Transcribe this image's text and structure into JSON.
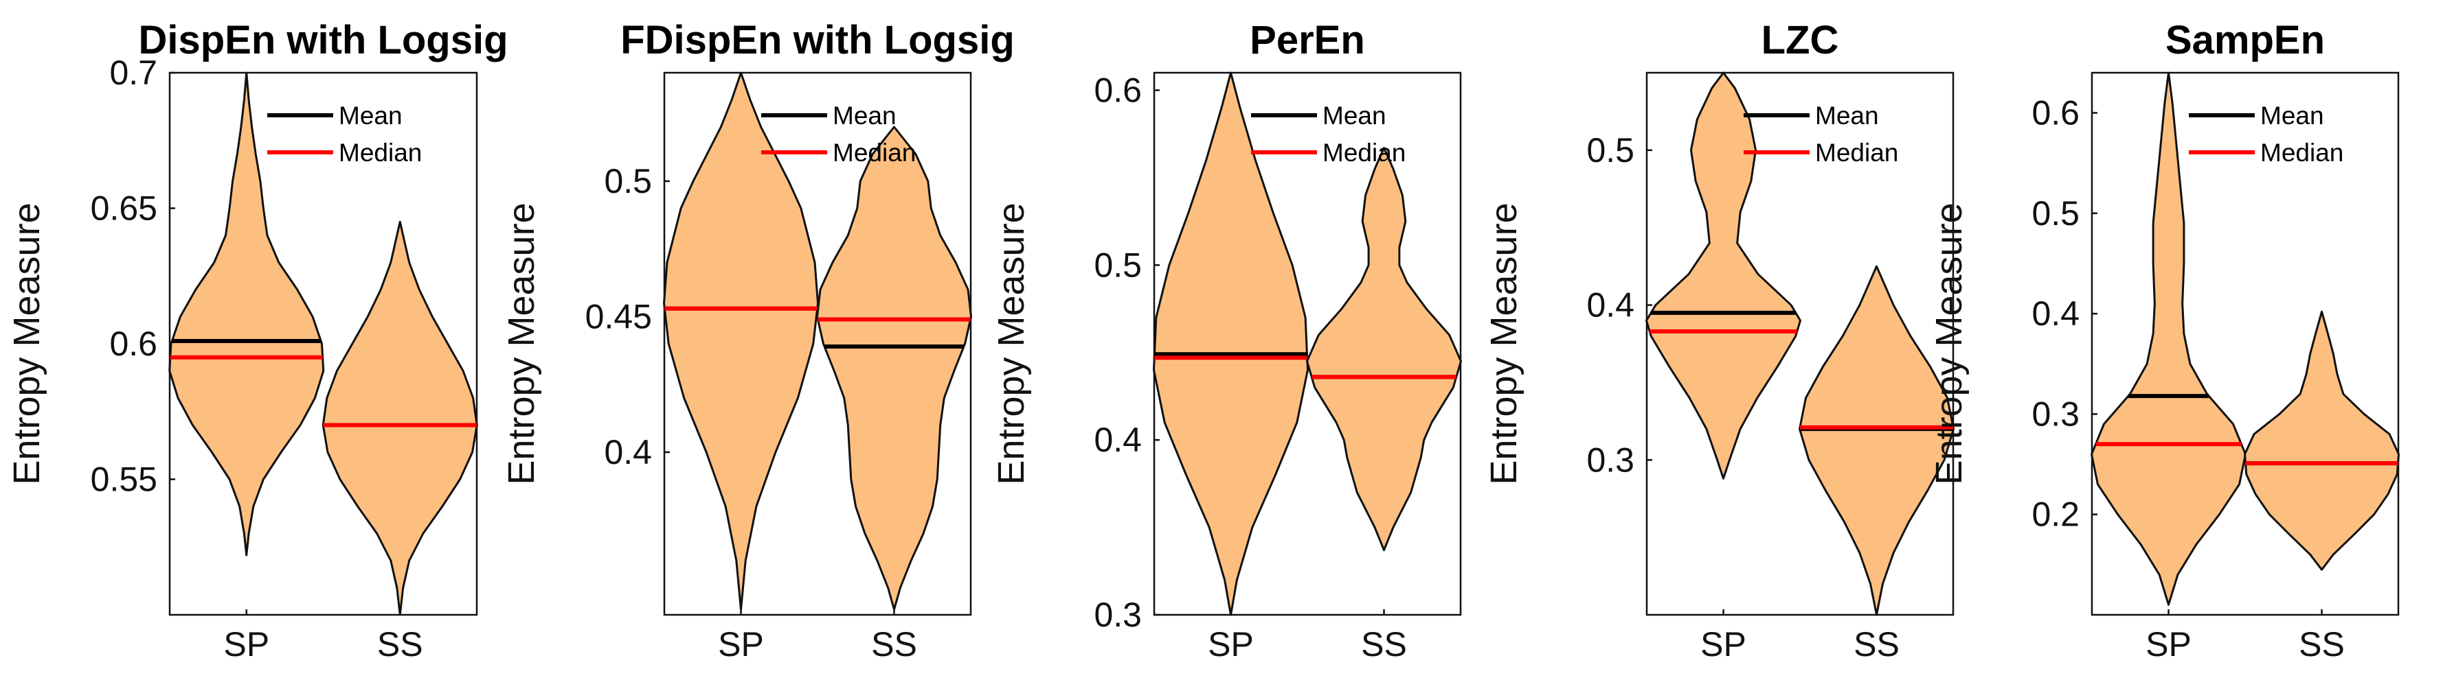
{
  "figure": {
    "background": "#ffffff",
    "violin_fill": "#fdbf80",
    "mean_color": "#000000",
    "median_color": "#ff0000"
  },
  "chart_data": [
    {
      "type": "violin",
      "title": "DispEn with Logsig",
      "ylabel": "Entropy Measure",
      "categories": [
        "SP",
        "SS"
      ],
      "ylim": [
        0.5,
        0.7
      ],
      "yticks": [
        0.55,
        0.6,
        0.65,
        0.7
      ],
      "ytick_labels": [
        "0.55",
        "0.6",
        "0.65",
        "0.7"
      ],
      "legend": {
        "mean_label": "Mean",
        "median_label": "Median",
        "location": "top-right"
      },
      "groups": [
        {
          "name": "SP",
          "mean": 0.601,
          "median": 0.595,
          "min": 0.522,
          "max": 0.7,
          "profile": [
            [
              0.522,
              0.0
            ],
            [
              0.53,
              0.03
            ],
            [
              0.54,
              0.09
            ],
            [
              0.55,
              0.22
            ],
            [
              0.56,
              0.45
            ],
            [
              0.57,
              0.7
            ],
            [
              0.58,
              0.89
            ],
            [
              0.59,
              1.0
            ],
            [
              0.6,
              0.98
            ],
            [
              0.61,
              0.86
            ],
            [
              0.62,
              0.66
            ],
            [
              0.63,
              0.42
            ],
            [
              0.64,
              0.27
            ],
            [
              0.65,
              0.22
            ],
            [
              0.66,
              0.18
            ],
            [
              0.67,
              0.12
            ],
            [
              0.68,
              0.07
            ],
            [
              0.69,
              0.03
            ],
            [
              0.7,
              0.0
            ]
          ]
        },
        {
          "name": "SS",
          "mean": 0.57,
          "median": 0.57,
          "min": 0.5,
          "max": 0.645,
          "profile": [
            [
              0.5,
              0.0
            ],
            [
              0.51,
              0.04
            ],
            [
              0.52,
              0.12
            ],
            [
              0.53,
              0.3
            ],
            [
              0.54,
              0.55
            ],
            [
              0.55,
              0.78
            ],
            [
              0.56,
              0.94
            ],
            [
              0.57,
              1.0
            ],
            [
              0.58,
              0.95
            ],
            [
              0.59,
              0.82
            ],
            [
              0.6,
              0.62
            ],
            [
              0.61,
              0.42
            ],
            [
              0.62,
              0.25
            ],
            [
              0.63,
              0.12
            ],
            [
              0.645,
              0.0
            ]
          ]
        }
      ]
    },
    {
      "type": "violin",
      "title": "FDispEn with Logsig",
      "ylabel": "Entropy Measure",
      "categories": [
        "SP",
        "SS"
      ],
      "ylim": [
        0.34,
        0.54
      ],
      "yticks": [
        0.4,
        0.45,
        0.5
      ],
      "ytick_labels": [
        "0.4",
        "0.45",
        "0.5"
      ],
      "legend": {
        "mean_label": "Mean",
        "median_label": "Median",
        "location": "top-right"
      },
      "groups": [
        {
          "name": "SP",
          "mean": 0.453,
          "median": 0.453,
          "min": 0.342,
          "max": 0.54,
          "profile": [
            [
              0.342,
              0.0
            ],
            [
              0.36,
              0.06
            ],
            [
              0.38,
              0.2
            ],
            [
              0.4,
              0.45
            ],
            [
              0.42,
              0.74
            ],
            [
              0.44,
              0.94
            ],
            [
              0.455,
              1.0
            ],
            [
              0.47,
              0.96
            ],
            [
              0.49,
              0.78
            ],
            [
              0.5,
              0.62
            ],
            [
              0.51,
              0.44
            ],
            [
              0.52,
              0.26
            ],
            [
              0.53,
              0.12
            ],
            [
              0.54,
              0.0
            ]
          ]
        },
        {
          "name": "SS",
          "mean": 0.439,
          "median": 0.449,
          "min": 0.342,
          "max": 0.52,
          "profile": [
            [
              0.342,
              0.0
            ],
            [
              0.35,
              0.08
            ],
            [
              0.36,
              0.22
            ],
            [
              0.37,
              0.38
            ],
            [
              0.38,
              0.5
            ],
            [
              0.39,
              0.56
            ],
            [
              0.4,
              0.58
            ],
            [
              0.41,
              0.6
            ],
            [
              0.42,
              0.65
            ],
            [
              0.43,
              0.78
            ],
            [
              0.44,
              0.92
            ],
            [
              0.45,
              1.0
            ],
            [
              0.46,
              0.96
            ],
            [
              0.47,
              0.8
            ],
            [
              0.48,
              0.6
            ],
            [
              0.49,
              0.48
            ],
            [
              0.5,
              0.44
            ],
            [
              0.51,
              0.28
            ],
            [
              0.52,
              0.0
            ]
          ]
        }
      ]
    },
    {
      "type": "violin",
      "title": "PerEn",
      "ylabel": "Entropy Measure",
      "categories": [
        "SP",
        "SS"
      ],
      "ylim": [
        0.3,
        0.61
      ],
      "yticks": [
        0.3,
        0.4,
        0.5,
        0.6
      ],
      "ytick_labels": [
        "0.3",
        "0.4",
        "0.5",
        "0.6"
      ],
      "legend": {
        "mean_label": "Mean",
        "median_label": "Median",
        "location": "top-right"
      },
      "groups": [
        {
          "name": "SP",
          "mean": 0.449,
          "median": 0.447,
          "min": 0.3,
          "max": 0.61,
          "profile": [
            [
              0.3,
              0.0
            ],
            [
              0.32,
              0.08
            ],
            [
              0.35,
              0.28
            ],
            [
              0.38,
              0.58
            ],
            [
              0.41,
              0.86
            ],
            [
              0.44,
              1.0
            ],
            [
              0.47,
              0.97
            ],
            [
              0.5,
              0.8
            ],
            [
              0.53,
              0.55
            ],
            [
              0.56,
              0.32
            ],
            [
              0.59,
              0.12
            ],
            [
              0.61,
              0.0
            ]
          ]
        },
        {
          "name": "SS",
          "mean": 0.436,
          "median": 0.436,
          "min": 0.337,
          "max": 0.567,
          "profile": [
            [
              0.337,
              0.0
            ],
            [
              0.35,
              0.12
            ],
            [
              0.37,
              0.35
            ],
            [
              0.39,
              0.48
            ],
            [
              0.4,
              0.52
            ],
            [
              0.41,
              0.62
            ],
            [
              0.43,
              0.9
            ],
            [
              0.445,
              1.0
            ],
            [
              0.46,
              0.85
            ],
            [
              0.475,
              0.55
            ],
            [
              0.49,
              0.3
            ],
            [
              0.5,
              0.2
            ],
            [
              0.51,
              0.2
            ],
            [
              0.525,
              0.28
            ],
            [
              0.54,
              0.24
            ],
            [
              0.555,
              0.12
            ],
            [
              0.567,
              0.0
            ]
          ]
        }
      ]
    },
    {
      "type": "violin",
      "title": "LZC",
      "ylabel": "Entropy Measure",
      "categories": [
        "SP",
        "SS"
      ],
      "ylim": [
        0.2,
        0.55
      ],
      "yticks": [
        0.3,
        0.4,
        0.5
      ],
      "ytick_labels": [
        "0.3",
        "0.4",
        "0.5"
      ],
      "legend": {
        "mean_label": "Mean",
        "median_label": "Median",
        "location": "top-right"
      },
      "groups": [
        {
          "name": "SP",
          "mean": 0.395,
          "median": 0.383,
          "min": 0.288,
          "max": 0.55,
          "profile": [
            [
              0.288,
              0.0
            ],
            [
              0.3,
              0.08
            ],
            [
              0.32,
              0.22
            ],
            [
              0.34,
              0.44
            ],
            [
              0.36,
              0.7
            ],
            [
              0.38,
              0.94
            ],
            [
              0.39,
              1.0
            ],
            [
              0.4,
              0.88
            ],
            [
              0.42,
              0.45
            ],
            [
              0.44,
              0.18
            ],
            [
              0.46,
              0.22
            ],
            [
              0.48,
              0.36
            ],
            [
              0.5,
              0.42
            ],
            [
              0.52,
              0.34
            ],
            [
              0.54,
              0.15
            ],
            [
              0.55,
              0.0
            ]
          ]
        },
        {
          "name": "SS",
          "mean": 0.32,
          "median": 0.321,
          "min": 0.2,
          "max": 0.425,
          "profile": [
            [
              0.2,
              0.0
            ],
            [
              0.22,
              0.08
            ],
            [
              0.24,
              0.22
            ],
            [
              0.26,
              0.42
            ],
            [
              0.28,
              0.66
            ],
            [
              0.3,
              0.88
            ],
            [
              0.32,
              1.0
            ],
            [
              0.34,
              0.92
            ],
            [
              0.36,
              0.7
            ],
            [
              0.38,
              0.44
            ],
            [
              0.4,
              0.22
            ],
            [
              0.425,
              0.0
            ]
          ]
        }
      ]
    },
    {
      "type": "violin",
      "title": "SampEn",
      "ylabel": "Entropy Measure",
      "categories": [
        "SP",
        "SS"
      ],
      "ylim": [
        0.1,
        0.64
      ],
      "yticks": [
        0.2,
        0.3,
        0.4,
        0.5,
        0.6
      ],
      "ytick_labels": [
        "0.2",
        "0.3",
        "0.4",
        "0.5",
        "0.6"
      ],
      "legend": {
        "mean_label": "Mean",
        "median_label": "Median",
        "location": "top-right"
      },
      "groups": [
        {
          "name": "SP",
          "mean": 0.318,
          "median": 0.27,
          "min": 0.11,
          "max": 0.64,
          "profile": [
            [
              0.11,
              0.0
            ],
            [
              0.14,
              0.12
            ],
            [
              0.17,
              0.36
            ],
            [
              0.2,
              0.66
            ],
            [
              0.23,
              0.92
            ],
            [
              0.26,
              1.0
            ],
            [
              0.29,
              0.84
            ],
            [
              0.32,
              0.5
            ],
            [
              0.35,
              0.28
            ],
            [
              0.38,
              0.2
            ],
            [
              0.41,
              0.18
            ],
            [
              0.45,
              0.2
            ],
            [
              0.49,
              0.2
            ],
            [
              0.53,
              0.15
            ],
            [
              0.57,
              0.1
            ],
            [
              0.61,
              0.05
            ],
            [
              0.64,
              0.0
            ]
          ]
        },
        {
          "name": "SS",
          "mean": 0.251,
          "median": 0.251,
          "min": 0.145,
          "max": 0.402,
          "profile": [
            [
              0.145,
              0.0
            ],
            [
              0.16,
              0.15
            ],
            [
              0.18,
              0.42
            ],
            [
              0.2,
              0.68
            ],
            [
              0.22,
              0.86
            ],
            [
              0.24,
              0.98
            ],
            [
              0.26,
              1.0
            ],
            [
              0.28,
              0.88
            ],
            [
              0.3,
              0.55
            ],
            [
              0.32,
              0.28
            ],
            [
              0.34,
              0.2
            ],
            [
              0.36,
              0.15
            ],
            [
              0.38,
              0.08
            ],
            [
              0.402,
              0.0
            ]
          ]
        }
      ]
    }
  ]
}
